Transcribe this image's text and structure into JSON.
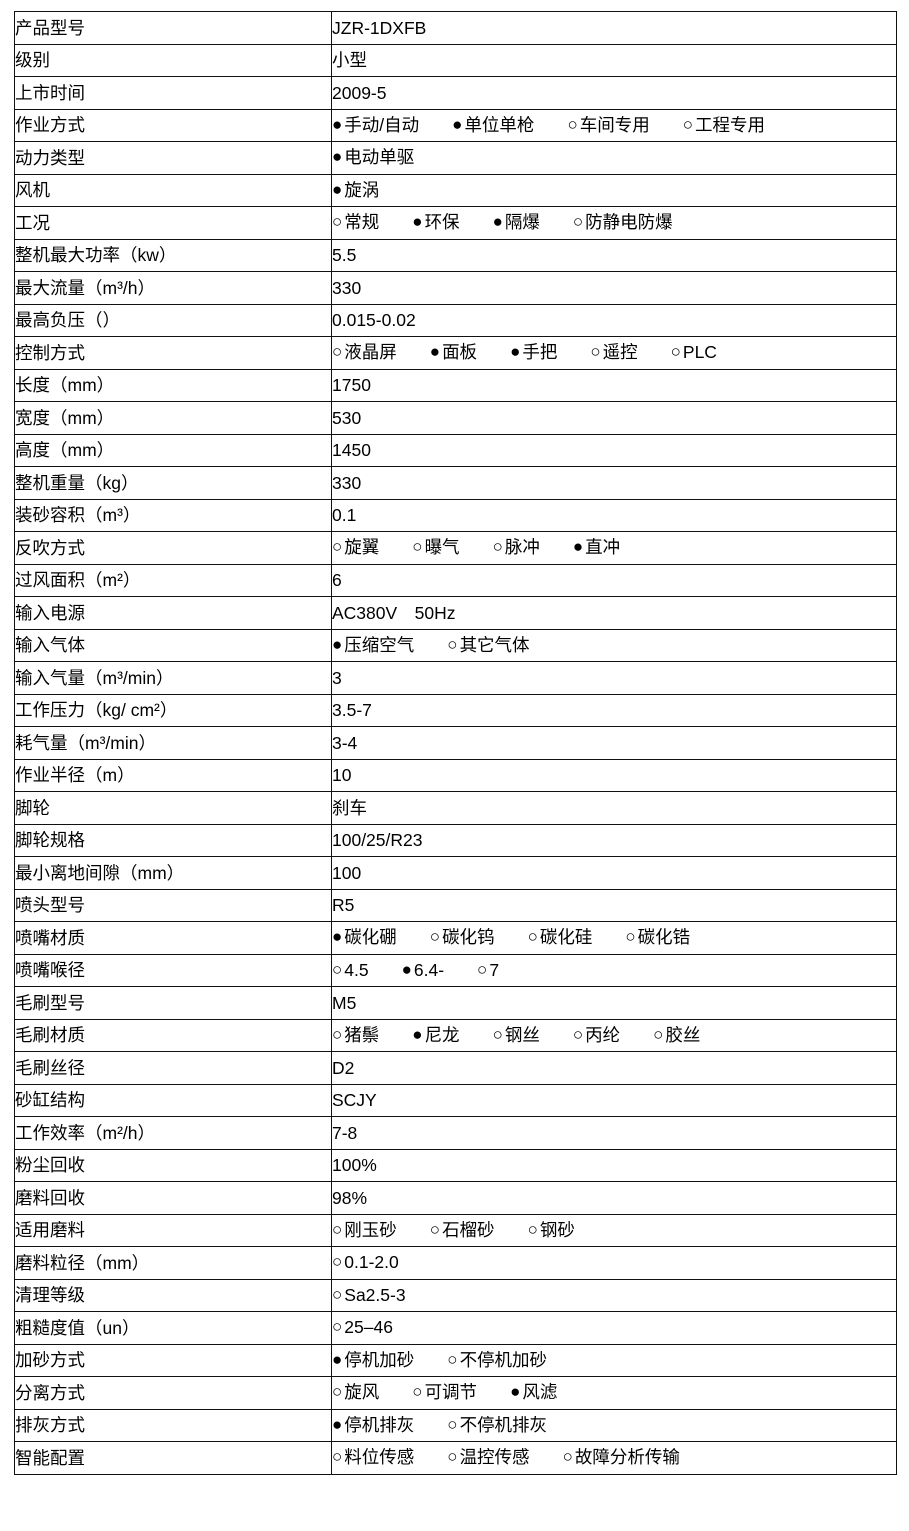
{
  "page": {
    "background_color": "#ffffff",
    "border_color": "#111111",
    "text_color": "#000000"
  },
  "table": {
    "markers": {
      "filled": "●",
      "empty": "○"
    },
    "rows": [
      {
        "label": "产品型号",
        "value": "JZR-1DXFB"
      },
      {
        "label": "级别",
        "value": "小型"
      },
      {
        "label": "上市时间",
        "value": "2009-5"
      },
      {
        "label": "作业方式",
        "options": [
          {
            "text": "手动/自动",
            "selected": true
          },
          {
            "text": "单位单枪",
            "selected": true
          },
          {
            "text": "车间专用",
            "selected": false
          },
          {
            "text": "工程专用",
            "selected": false
          }
        ]
      },
      {
        "label": "动力类型",
        "options": [
          {
            "text": "电动单驱",
            "selected": true
          }
        ]
      },
      {
        "label": "风机",
        "options": [
          {
            "text": "旋涡",
            "selected": true
          }
        ]
      },
      {
        "label": "工况",
        "options": [
          {
            "text": "常规",
            "selected": false
          },
          {
            "text": "环保",
            "selected": true
          },
          {
            "text": "隔爆",
            "selected": true
          },
          {
            "text": "防静电防爆",
            "selected": false
          }
        ]
      },
      {
        "label": "整机最大功率（kw）",
        "value": "5.5"
      },
      {
        "label": "最大流量（m³/h）",
        "value": "330"
      },
      {
        "label": "最高负压（）",
        "value": "0.015-0.02"
      },
      {
        "label": "控制方式",
        "options": [
          {
            "text": "液晶屏",
            "selected": false
          },
          {
            "text": "面板",
            "selected": true
          },
          {
            "text": "手把",
            "selected": true
          },
          {
            "text": "遥控",
            "selected": false
          },
          {
            "text": "PLC",
            "selected": false
          }
        ]
      },
      {
        "label": "长度（mm）",
        "value": "1750"
      },
      {
        "label": "宽度（mm）",
        "value": "530"
      },
      {
        "label": "高度（mm）",
        "value": "1450"
      },
      {
        "label": "整机重量（kg）",
        "value": "330"
      },
      {
        "label": "装砂容积（m³）",
        "value": "0.1"
      },
      {
        "label": "反吹方式",
        "options": [
          {
            "text": "旋翼",
            "selected": false
          },
          {
            "text": "曝气",
            "selected": false
          },
          {
            "text": "脉冲",
            "selected": false
          },
          {
            "text": "直冲",
            "selected": true
          }
        ]
      },
      {
        "label": "过风面积（m²）",
        "value": "6"
      },
      {
        "label": "输入电源",
        "value": "AC380V　50Hz"
      },
      {
        "label": "输入气体",
        "options": [
          {
            "text": "压缩空气",
            "selected": true
          },
          {
            "text": "其它气体",
            "selected": false
          }
        ]
      },
      {
        "label": "输入气量（m³/min）",
        "value": "3"
      },
      {
        "label": "工作压力（kg/ cm²）",
        "value": "3.5-7"
      },
      {
        "label": "耗气量（m³/min）",
        "value": "3-4"
      },
      {
        "label": "作业半径（m）",
        "value": "10"
      },
      {
        "label": "脚轮",
        "value": "刹车"
      },
      {
        "label": "脚轮规格",
        "value": "100/25/R23"
      },
      {
        "label": "最小离地间隙（mm）",
        "value": "100"
      },
      {
        "label": "喷头型号",
        "value": "R5"
      },
      {
        "label": "喷嘴材质",
        "options": [
          {
            "text": "碳化硼",
            "selected": true
          },
          {
            "text": "碳化钨",
            "selected": false
          },
          {
            "text": "碳化硅",
            "selected": false
          },
          {
            "text": "碳化锆",
            "selected": false
          }
        ]
      },
      {
        "label": "喷嘴喉径",
        "options": [
          {
            "text": "4.5",
            "selected": false
          },
          {
            "text": "6.4-",
            "selected": true
          },
          {
            "text": "7",
            "selected": false
          }
        ]
      },
      {
        "label": "毛刷型号",
        "value": "M5"
      },
      {
        "label": "毛刷材质",
        "options": [
          {
            "text": "猪鬃",
            "selected": false
          },
          {
            "text": "尼龙",
            "selected": true
          },
          {
            "text": "钢丝",
            "selected": false
          },
          {
            "text": "丙纶",
            "selected": false
          },
          {
            "text": "胶丝",
            "selected": false
          }
        ]
      },
      {
        "label": "毛刷丝径",
        "value": "D2"
      },
      {
        "label": "砂缸结构",
        "value": "SCJY"
      },
      {
        "label": "工作效率（m²/h）",
        "value": "7-8"
      },
      {
        "label": "粉尘回收",
        "value": "100%"
      },
      {
        "label": "磨料回收",
        "value": "98%"
      },
      {
        "label": "适用磨料",
        "options": [
          {
            "text": "刚玉砂",
            "selected": false
          },
          {
            "text": "石榴砂",
            "selected": false
          },
          {
            "text": "钢砂",
            "selected": false
          }
        ]
      },
      {
        "label": "磨料粒径（mm）",
        "options": [
          {
            "text": "0.1-2.0",
            "selected": false
          }
        ]
      },
      {
        "label": "清理等级",
        "options": [
          {
            "text": "Sa2.5-3",
            "selected": false
          }
        ]
      },
      {
        "label": "粗糙度值（un）",
        "options": [
          {
            "text": "25–46",
            "selected": false
          }
        ]
      },
      {
        "label": "加砂方式",
        "options": [
          {
            "text": "停机加砂",
            "selected": true
          },
          {
            "text": "不停机加砂",
            "selected": false
          }
        ]
      },
      {
        "label": "分离方式",
        "options": [
          {
            "text": "旋风",
            "selected": false
          },
          {
            "text": "可调节",
            "selected": false
          },
          {
            "text": "风滤",
            "selected": true
          }
        ]
      },
      {
        "label": "排灰方式",
        "options": [
          {
            "text": "停机排灰",
            "selected": true
          },
          {
            "text": "不停机排灰",
            "selected": false
          }
        ]
      },
      {
        "label": "智能配置",
        "options": [
          {
            "text": "料位传感",
            "selected": false
          },
          {
            "text": "温控传感",
            "selected": false
          },
          {
            "text": "故障分析传输",
            "selected": false
          }
        ]
      }
    ]
  }
}
